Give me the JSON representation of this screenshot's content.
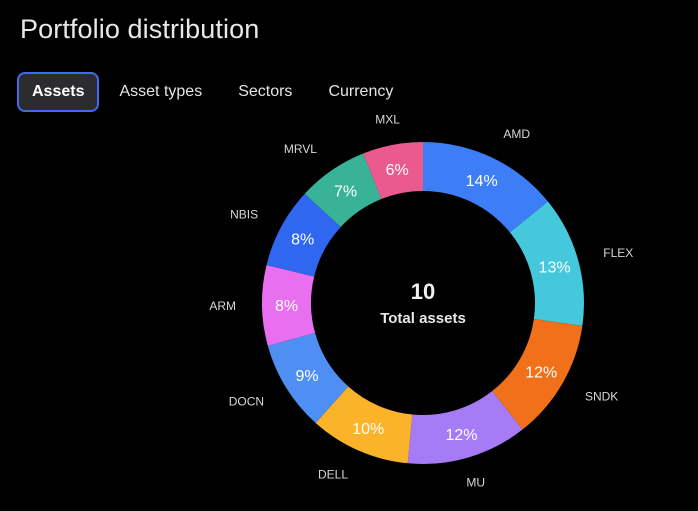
{
  "header": {
    "title": "Portfolio distribution"
  },
  "tabs": [
    {
      "label": "Assets",
      "selected": true
    },
    {
      "label": "Asset types",
      "selected": false
    },
    {
      "label": "Sectors",
      "selected": false
    },
    {
      "label": "Currency",
      "selected": false
    }
  ],
  "colors": {
    "background": "#000000",
    "tab_selected_bg": "#2c2c2e",
    "tab_selected_border": "#3d6cf2"
  },
  "chart_data": {
    "type": "pie",
    "style": "donut",
    "center": {
      "value": "10",
      "caption": "Total assets"
    },
    "slices": [
      {
        "name": "AMD",
        "value": 14,
        "label": "14%",
        "color": "#3d7ef7"
      },
      {
        "name": "FLEX",
        "value": 13,
        "label": "13%",
        "color": "#45c7dc"
      },
      {
        "name": "SNDK",
        "value": 12,
        "label": "12%",
        "color": "#f0711a"
      },
      {
        "name": "MU",
        "value": 12,
        "label": "12%",
        "color": "#a77bf5"
      },
      {
        "name": "DELL",
        "value": 10,
        "label": "10%",
        "color": "#fbb42a"
      },
      {
        "name": "DOCN",
        "value": 9,
        "label": "9%",
        "color": "#4f8ff4"
      },
      {
        "name": "ARM",
        "value": 8,
        "label": "8%",
        "color": "#e86ff0"
      },
      {
        "name": "NBIS",
        "value": 8,
        "label": "8%",
        "color": "#2f67f0"
      },
      {
        "name": "MRVL",
        "value": 7,
        "label": "7%",
        "color": "#38b398"
      },
      {
        "name": "MXL",
        "value": 6,
        "label": "6%",
        "color": "#ea5a8e"
      }
    ]
  }
}
